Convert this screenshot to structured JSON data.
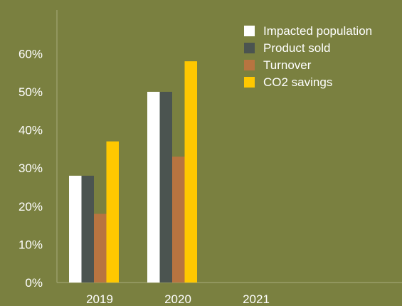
{
  "chart_data": {
    "type": "bar",
    "categories": [
      "2019",
      "2020",
      "2021"
    ],
    "series": [
      {
        "name": "Impacted population",
        "values": [
          28,
          50,
          null
        ],
        "color": "#ffffff"
      },
      {
        "name": "Product sold",
        "values": [
          28,
          50,
          null
        ],
        "color": "#4b5450"
      },
      {
        "name": "Turnover",
        "values": [
          18,
          33,
          null
        ],
        "color": "#b87440"
      },
      {
        "name": "CO2 savings",
        "values": [
          37,
          58,
          null
        ],
        "color": "#ffc800"
      }
    ],
    "yticks": [
      "0%",
      "10%",
      "20%",
      "30%",
      "40%",
      "50%",
      "60%"
    ],
    "ylim": [
      0,
      70
    ],
    "y_unit": "%",
    "grid": false,
    "legend_position": "top-right",
    "background_color": "#7a8040",
    "axis_color": "#a8ad7c"
  }
}
